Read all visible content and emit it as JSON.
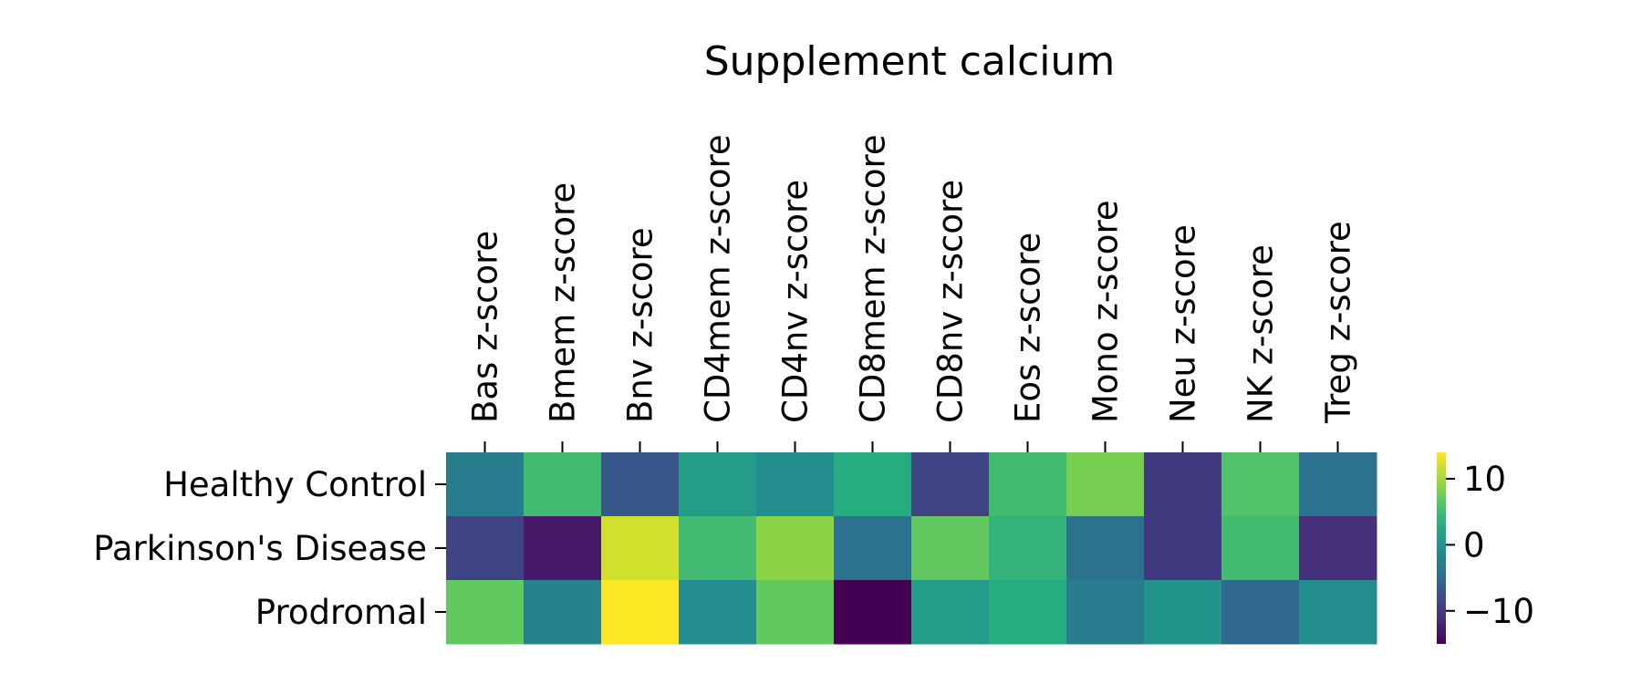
{
  "chart_data": {
    "type": "heatmap",
    "title": "Supplement calcium",
    "xlabel": "",
    "ylabel": "",
    "columns": [
      "Bas z-score",
      "Bmem z-score",
      "Bnv z-score",
      "CD4mem z-score",
      "CD4nv z-score",
      "CD8mem z-score",
      "CD8nv z-score",
      "Eos z-score",
      "Mono z-score",
      "Neu z-score",
      "NK z-score",
      "Treg z-score"
    ],
    "rows": [
      "Healthy Control",
      "Parkinson's Disease",
      "Prodromal"
    ],
    "values": [
      [
        -3,
        5,
        -7,
        1,
        -1,
        3,
        -9,
        5,
        8,
        -10,
        6,
        -4
      ],
      [
        -9,
        -13,
        12,
        5,
        9,
        -4,
        7,
        4,
        -4,
        -10,
        5,
        -11
      ],
      [
        7,
        -2,
        14,
        -1,
        7,
        -15,
        1,
        3,
        -3,
        0,
        -5,
        -1
      ]
    ],
    "colorbar": {
      "min": -15,
      "max": 14,
      "ticks": [
        10,
        0,
        -10
      ],
      "tick_labels": [
        "10",
        "0",
        "−10"
      ]
    },
    "colormap": "viridis",
    "grid": false,
    "legend": "colorbar-right"
  }
}
